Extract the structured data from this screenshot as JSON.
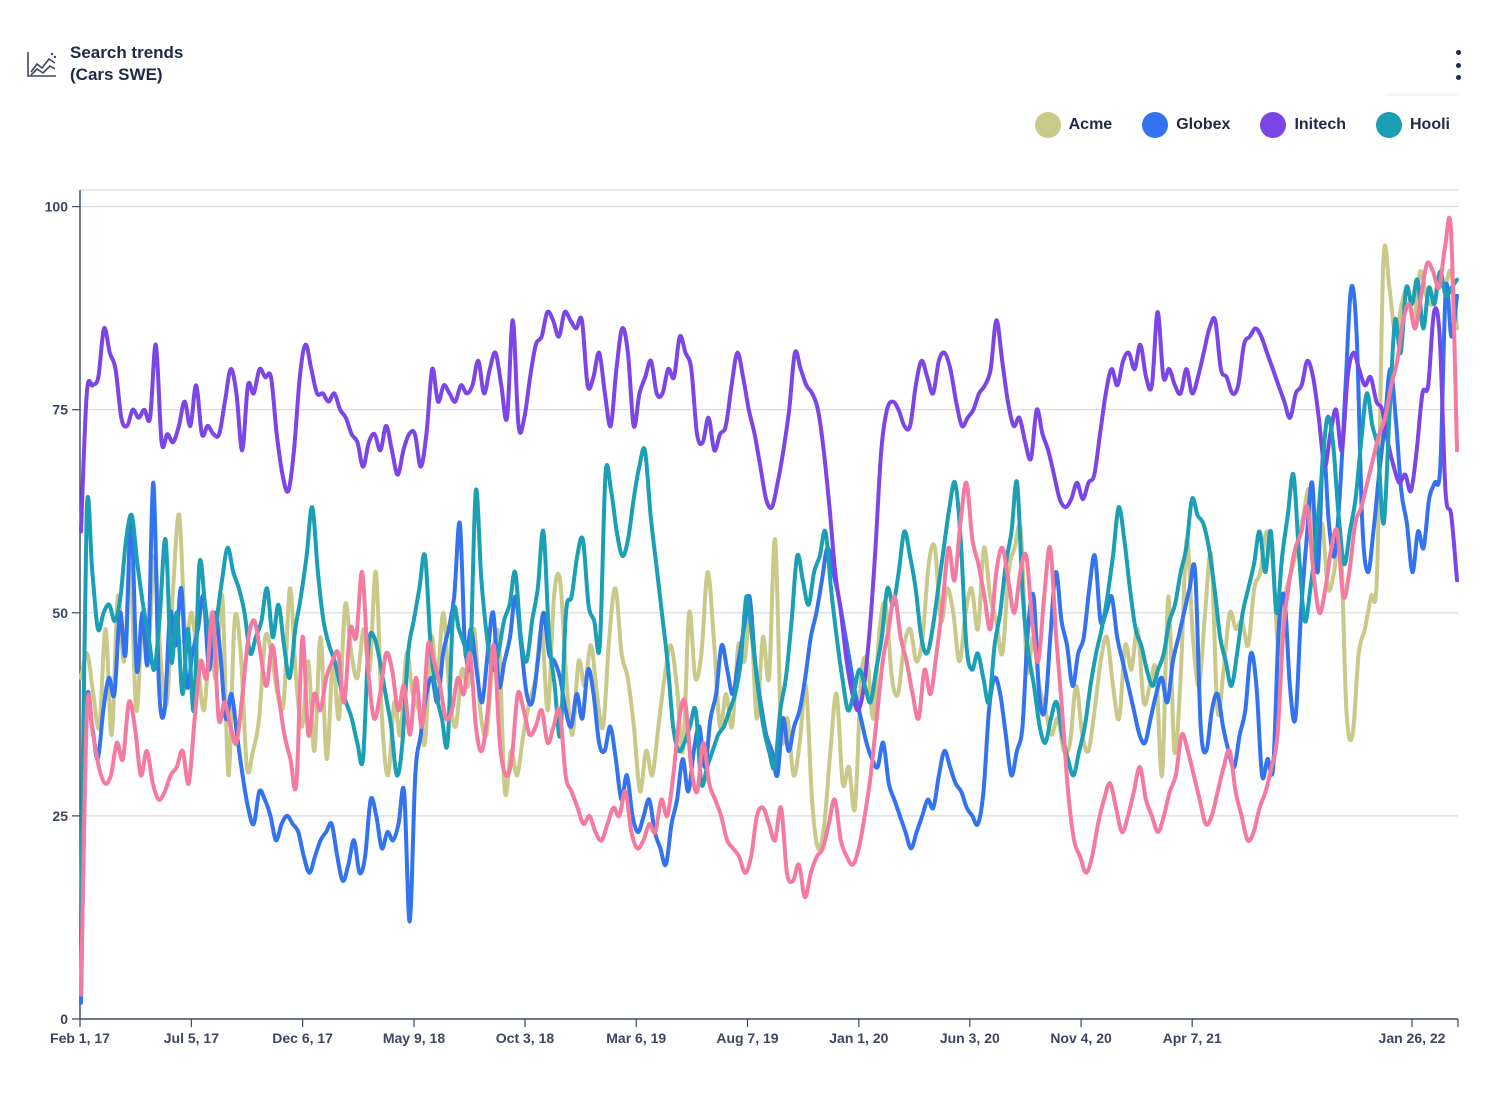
{
  "header": {
    "title_line1": "Search trends",
    "title_line2": "(Cars SWE)"
  },
  "icons": {
    "title": "line-chart-icon",
    "menu": "vertical-dots-icon"
  },
  "legend": [
    {
      "label": "Acme",
      "color": "#c9c98a"
    },
    {
      "label": "Globex",
      "color": "#3373f0"
    },
    {
      "label": "Initech",
      "color": "#7b45e8"
    },
    {
      "label": "Hooli",
      "color": "#1a9fb5"
    }
  ],
  "chart_data": {
    "type": "line",
    "title": "Search trends (Cars SWE)",
    "x_ticks": [
      "Feb 1, 17",
      "Jul 5, 17",
      "Dec 6, 17",
      "May 9, 18",
      "Oct 3, 18",
      "Mar 6, 19",
      "Aug 7, 19",
      "Jan 1, 20",
      "Jun 3, 20",
      "Nov 4, 20",
      "Apr 7, 21",
      "Jan 26, 22"
    ],
    "y_ticks": [
      0,
      25,
      50,
      75,
      100
    ],
    "ylim": [
      0,
      100
    ],
    "grid": true,
    "legend_position": "top-right",
    "series": [
      {
        "name": "Acme",
        "color": "#c9c98a",
        "values": [
          42,
          45,
          40,
          36,
          48,
          35,
          52,
          44,
          56,
          38,
          49,
          46,
          57,
          44,
          39,
          53,
          62,
          47,
          50,
          44,
          38,
          46,
          42,
          52,
          30,
          49,
          45,
          31,
          33,
          37,
          47,
          45,
          40,
          39,
          53,
          42,
          36,
          44,
          33,
          47,
          32,
          44,
          37,
          51,
          45,
          42,
          48,
          43,
          55,
          37,
          30,
          39,
          35,
          45,
          40,
          38,
          34,
          47,
          42,
          50,
          40,
          36,
          43,
          41,
          48,
          38,
          35,
          44,
          47,
          28,
          33,
          30,
          35,
          39,
          42,
          48,
          38,
          52,
          54,
          42,
          35,
          44,
          41,
          46,
          40,
          36,
          47,
          53,
          45,
          42,
          36,
          28,
          33,
          30,
          36,
          42,
          46,
          41,
          33,
          50,
          42,
          45,
          55,
          47,
          36,
          40,
          36,
          46,
          44,
          50,
          37,
          47,
          42,
          59,
          35,
          37,
          30,
          34,
          41,
          27,
          21,
          24,
          33,
          40,
          29,
          31,
          26,
          42,
          44,
          37,
          48,
          51,
          42,
          40,
          46,
          48,
          44,
          47,
          56,
          58,
          49,
          53,
          50,
          44,
          50,
          53,
          48,
          58,
          52,
          49,
          45,
          55,
          58,
          60,
          43,
          47,
          41,
          38,
          35,
          37,
          33,
          34,
          41,
          35,
          33,
          38,
          44,
          47,
          41,
          37,
          46,
          43,
          48,
          39,
          41,
          43,
          30,
          52,
          33,
          42,
          59,
          47,
          41,
          50,
          57,
          38,
          43,
          50,
          48,
          49,
          46,
          53,
          55,
          60,
          56,
          45,
          52,
          55,
          58,
          62,
          65,
          55,
          61,
          53,
          55,
          60,
          38,
          35,
          45,
          48,
          52,
          55,
          93,
          90,
          84,
          88,
          90,
          86,
          92,
          89,
          88,
          91,
          90,
          92,
          85
        ]
      },
      {
        "name": "Globex",
        "color": "#3373f0",
        "values": [
          2,
          38,
          36,
          32,
          38,
          42,
          40,
          50,
          45,
          62,
          43,
          50,
          44,
          66,
          41,
          38,
          50,
          46,
          53,
          41,
          45,
          48,
          52,
          43,
          50,
          45,
          37,
          40,
          35,
          30,
          26,
          24,
          28,
          27,
          25,
          22,
          24,
          25,
          24,
          23,
          20,
          18,
          20,
          22,
          23,
          24,
          20,
          17,
          19,
          22,
          18,
          20,
          27,
          25,
          21,
          23,
          22,
          24,
          28,
          12,
          30,
          35,
          40,
          42,
          39,
          45,
          48,
          52,
          61,
          45,
          48,
          43,
          39,
          45,
          50,
          41,
          44,
          47,
          52,
          46,
          40,
          39,
          44,
          50,
          45,
          44,
          42,
          38,
          36,
          40,
          37,
          43,
          40,
          34,
          33,
          36,
          32,
          27,
          30,
          25,
          23,
          25,
          27,
          23,
          21,
          19,
          24,
          27,
          32,
          28,
          33,
          36,
          31,
          37,
          40,
          46,
          43,
          40,
          44,
          48,
          52,
          44,
          39,
          35,
          33,
          30,
          37,
          33,
          36,
          38,
          42,
          47,
          50,
          54,
          58,
          55,
          52,
          48,
          44,
          40,
          37,
          34,
          32,
          31,
          34,
          29,
          27,
          25,
          23,
          21,
          23,
          25,
          27,
          26,
          30,
          33,
          31,
          29,
          28,
          26,
          25,
          24,
          28,
          38,
          42,
          40,
          35,
          30,
          33,
          36,
          48,
          52,
          40,
          38,
          47,
          55,
          49,
          46,
          41,
          45,
          47,
          53,
          57,
          49,
          50,
          52,
          47,
          44,
          41,
          38,
          35,
          34,
          37,
          40,
          42,
          39,
          44,
          47,
          50,
          53,
          55,
          36,
          33,
          38,
          40,
          36,
          33,
          31,
          35,
          38,
          45,
          41,
          30,
          32,
          31,
          48,
          52,
          41,
          37,
          50,
          59,
          66,
          55,
          70,
          61,
          57,
          65,
          78,
          90,
          84,
          61,
          55,
          60,
          67,
          73,
          80,
          74,
          65,
          61,
          55,
          60,
          58,
          64,
          66,
          68,
          90,
          84,
          89
        ]
      },
      {
        "name": "Initech",
        "color": "#7b45e8",
        "values": [
          60,
          77,
          78,
          79,
          85,
          82,
          80,
          74,
          73,
          75,
          74,
          75,
          74,
          83,
          71,
          72,
          71,
          73,
          76,
          73,
          78,
          72,
          73,
          72,
          72,
          76,
          80,
          77,
          70,
          78,
          77,
          80,
          79,
          79,
          72,
          67,
          65,
          70,
          79,
          83,
          80,
          77,
          77,
          76,
          77,
          75,
          74,
          72,
          71,
          68,
          71,
          72,
          70,
          73,
          70,
          67,
          70,
          72,
          72,
          68,
          72,
          80,
          76,
          78,
          77,
          76,
          78,
          77,
          78,
          81,
          77,
          80,
          82,
          78,
          74,
          86,
          73,
          74,
          79,
          83,
          84,
          87,
          86,
          84,
          87,
          86,
          85,
          86,
          78,
          79,
          82,
          77,
          73,
          80,
          85,
          82,
          73,
          77,
          79,
          81,
          77,
          77,
          80,
          79,
          84,
          82,
          80,
          72,
          71,
          74,
          70,
          72,
          73,
          78,
          82,
          79,
          75,
          72,
          68,
          64,
          63,
          66,
          70,
          75,
          82,
          80,
          78,
          77,
          75,
          70,
          63,
          55,
          50,
          44,
          40,
          38,
          41,
          48,
          58,
          70,
          75,
          76,
          75,
          73,
          73,
          78,
          81,
          79,
          77,
          81,
          82,
          80,
          76,
          73,
          74,
          75,
          77,
          78,
          80,
          86,
          81,
          76,
          73,
          74,
          71,
          69,
          75,
          72,
          70,
          67,
          64,
          63,
          64,
          66,
          64,
          66,
          67,
          72,
          77,
          80,
          78,
          81,
          82,
          80,
          83,
          79,
          78,
          87,
          79,
          80,
          78,
          77,
          80,
          77,
          79,
          82,
          85,
          86,
          80,
          79,
          77,
          78,
          83,
          84,
          85,
          84,
          82,
          80,
          78,
          76,
          74,
          77,
          78,
          81,
          79,
          74,
          68,
          72,
          75,
          70,
          79,
          82,
          80,
          78,
          79,
          76,
          75,
          71,
          68,
          66,
          67,
          65,
          70,
          77,
          78,
          87,
          84,
          65,
          62,
          54
        ]
      },
      {
        "name": "Hooli",
        "color": "#1a9fb5",
        "values": [
          12,
          62,
          55,
          48,
          50,
          51,
          49,
          52,
          59,
          62,
          56,
          51,
          47,
          43,
          50,
          59,
          44,
          50,
          40,
          48,
          38,
          56,
          51,
          46,
          49,
          54,
          58,
          55,
          53,
          50,
          45,
          47,
          49,
          53,
          47,
          51,
          46,
          42,
          48,
          52,
          57,
          63,
          55,
          49,
          46,
          44,
          41,
          39,
          37,
          34,
          32,
          46,
          47,
          44,
          40,
          36,
          30,
          34,
          45,
          49,
          53,
          57,
          46,
          40,
          37,
          34,
          50,
          48,
          46,
          44,
          65,
          54,
          47,
          43,
          45,
          49,
          51,
          55,
          47,
          44,
          49,
          53,
          60,
          47,
          41,
          35,
          50,
          52,
          57,
          59,
          51,
          49,
          46,
          67,
          65,
          60,
          57,
          59,
          64,
          68,
          70,
          62,
          56,
          50,
          44,
          36,
          33,
          34,
          36,
          38,
          29,
          31,
          33,
          35,
          36,
          38,
          40,
          44,
          52,
          47,
          41,
          36,
          33,
          31,
          38,
          42,
          49,
          57,
          54,
          51,
          55,
          57,
          60,
          53,
          47,
          42,
          38,
          40,
          43,
          41,
          39,
          43,
          47,
          53,
          51,
          55,
          60,
          57,
          53,
          47,
          45,
          48,
          53,
          58,
          63,
          66,
          59,
          46,
          43,
          45,
          42,
          39,
          46,
          50,
          56,
          60,
          66,
          52,
          45,
          41,
          36,
          34,
          37,
          39,
          35,
          32,
          30,
          33,
          36,
          41,
          45,
          48,
          52,
          57,
          63,
          59,
          53,
          48,
          46,
          43,
          41,
          43,
          45,
          49,
          51,
          55,
          58,
          64,
          62,
          61,
          58,
          53,
          47,
          44,
          41,
          45,
          50,
          53,
          56,
          60,
          55,
          60,
          50,
          57,
          62,
          67,
          57,
          49,
          53,
          59,
          67,
          74,
          71,
          62,
          56,
          60,
          64,
          71,
          77,
          73,
          70,
          61,
          74,
          86,
          82,
          90,
          88,
          91,
          85,
          90,
          88,
          92,
          89,
          90,
          91
        ]
      },
      {
        "name": "",
        "color": "#f57aa0",
        "values": [
          3,
          38,
          35,
          31,
          29,
          30,
          34,
          32,
          39,
          36,
          30,
          33,
          29,
          27,
          28,
          30,
          31,
          33,
          29,
          37,
          44,
          42,
          50,
          37,
          39,
          36,
          34,
          40,
          47,
          49,
          45,
          41,
          46,
          40,
          35,
          32,
          29,
          47,
          35,
          40,
          38,
          42,
          44,
          45,
          39,
          48,
          47,
          55,
          43,
          37,
          40,
          45,
          43,
          38,
          41,
          35,
          42,
          36,
          46,
          44,
          41,
          37,
          38,
          42,
          40,
          45,
          36,
          33,
          38,
          46,
          34,
          30,
          32,
          40,
          38,
          35,
          36,
          38,
          34,
          36,
          38,
          30,
          28,
          26,
          24,
          25,
          23,
          22,
          24,
          26,
          25,
          28,
          23,
          21,
          22,
          24,
          23,
          27,
          25,
          30,
          37,
          39,
          31,
          28,
          34,
          29,
          27,
          25,
          22,
          21,
          20,
          18,
          20,
          25,
          26,
          24,
          22,
          26,
          18,
          17,
          19,
          15,
          18,
          20,
          21,
          24,
          27,
          22,
          20,
          19,
          21,
          25,
          30,
          37,
          44,
          48,
          52,
          47,
          44,
          40,
          37,
          43,
          40,
          45,
          51,
          58,
          54,
          61,
          66,
          59,
          56,
          52,
          48,
          55,
          58,
          54,
          50,
          55,
          57,
          49,
          44,
          52,
          58,
          47,
          38,
          28,
          22,
          20,
          18,
          20,
          24,
          27,
          29,
          26,
          23,
          25,
          28,
          31,
          27,
          25,
          23,
          25,
          28,
          30,
          35,
          33,
          30,
          27,
          24,
          25,
          28,
          31,
          33,
          28,
          25,
          22,
          23,
          26,
          28,
          31,
          35,
          48,
          54,
          58,
          60,
          63,
          55,
          50,
          53,
          58,
          60,
          52,
          55,
          61,
          63,
          66,
          69,
          72,
          74,
          78,
          81,
          86,
          88,
          85,
          89,
          93,
          92,
          90,
          95,
          97,
          70
        ]
      }
    ]
  }
}
